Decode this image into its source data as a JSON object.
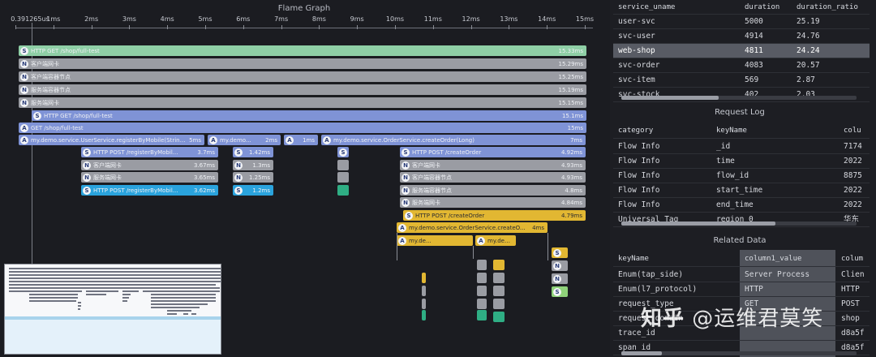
{
  "flame": {
    "title": "Flame Graph",
    "axis_start_label": "0.391265us",
    "ticks": [
      "1ms",
      "2ms",
      "3ms",
      "4ms",
      "5ms",
      "6ms",
      "7ms",
      "8ms",
      "9ms",
      "10ms",
      "11ms",
      "12ms",
      "13ms",
      "14ms",
      "15ms"
    ],
    "bars": [
      {
        "badge": "S",
        "name": "HTTP GET /shop/full-test",
        "dur": "15.33ms",
        "color": "#8fcfa6",
        "dark": false
      },
      {
        "badge": "N",
        "name": "客户端网卡",
        "dur": "15.29ms",
        "color": "#9a9ca3",
        "dark": false
      },
      {
        "badge": "N",
        "name": "客户端容器节点",
        "dur": "15.25ms",
        "color": "#9a9ca3",
        "dark": false
      },
      {
        "badge": "N",
        "name": "服务端容器节点",
        "dur": "15.19ms",
        "color": "#9a9ca3",
        "dark": false
      },
      {
        "badge": "N",
        "name": "服务端网卡",
        "dur": "15.15ms",
        "color": "#9a9ca3",
        "dark": false
      },
      {
        "badge": "S",
        "name": "HTTP GET /shop/full-test",
        "dur": "15.1ms",
        "color": "#7f93d6",
        "dark": false
      },
      {
        "badge": "A",
        "name": "GET /shop/full-test",
        "dur": "15ms",
        "color": "#7f93d6",
        "dark": false
      },
      {
        "badge": "A",
        "name": "my.demo.service.UserService.registerByMobile(String,St...",
        "dur": "5ms",
        "color": "#7f93d6",
        "dark": false
      },
      {
        "badge": "A",
        "name": "my.demo...",
        "dur": "2ms",
        "color": "#7f93d6",
        "dark": false
      },
      {
        "badge": "A",
        "name": "",
        "dur": "1ms",
        "color": "#7f93d6",
        "dark": false
      },
      {
        "badge": "A",
        "name": "my.demo.service.OrderService.createOrder(Long)",
        "dur": "7ms",
        "color": "#7f93d6",
        "dark": false
      },
      {
        "badge": "S",
        "name": "HTTP POST /registerByMobil...",
        "dur": "3.7ms",
        "color": "#7f93d6",
        "dark": false
      },
      {
        "badge": "S",
        "name": "",
        "dur": "1.42ms",
        "color": "#7f93d6",
        "dark": false
      },
      {
        "badge": "S",
        "name": "",
        "dur": "",
        "color": "#7f93d6",
        "dark": false
      },
      {
        "badge": "S",
        "name": "HTTP POST /createOrder",
        "dur": "4.92ms",
        "color": "#7f93d6",
        "dark": false
      },
      {
        "badge": "N",
        "name": "客户端网卡",
        "dur": "3.67ms",
        "color": "#9a9ca3",
        "dark": false
      },
      {
        "badge": "N",
        "name": "",
        "dur": "1.3ms",
        "color": "#9a9ca3",
        "dark": false
      },
      {
        "badge": "N",
        "name": "客户端网卡",
        "dur": "4.93ms",
        "color": "#9a9ca3",
        "dark": false
      },
      {
        "badge": "N",
        "name": "服务端网卡",
        "dur": "3.65ms",
        "color": "#9a9ca3",
        "dark": false
      },
      {
        "badge": "N",
        "name": "",
        "dur": "1.25ms",
        "color": "#9a9ca3",
        "dark": false
      },
      {
        "badge": "N",
        "name": "客户端容器节点",
        "dur": "4.93ms",
        "color": "#9a9ca3",
        "dark": false
      },
      {
        "badge": "S",
        "name": "HTTP POST /registerByMobil...",
        "dur": "3.62ms",
        "color": "#2aa3dd",
        "dark": false
      },
      {
        "badge": "S",
        "name": "",
        "dur": "1.2ms",
        "color": "#2aa3dd",
        "dark": false
      },
      {
        "badge": "N",
        "name": "服务端容器节点",
        "dur": "4.8ms",
        "color": "#9a9ca3",
        "dark": false
      },
      {
        "badge": "N",
        "name": "服务端网卡",
        "dur": "4.84ms",
        "color": "#9a9ca3",
        "dark": false
      },
      {
        "badge": "S",
        "name": "HTTP POST /createOrder",
        "dur": "4.79ms",
        "color": "#e2b732",
        "dark": true
      },
      {
        "badge": "A",
        "name": "my.demo.service.OrderService.createO...",
        "dur": "4ms",
        "color": "#e2b732",
        "dark": true
      },
      {
        "badge": "A",
        "name": "my.de...",
        "dur": "",
        "color": "#e2b732",
        "dark": true
      },
      {
        "badge": "A",
        "name": "my.demo...",
        "dur": "",
        "color": "#e2b732",
        "dark": true
      },
      {
        "badge": "S",
        "name": "",
        "dur": "",
        "color": "#e2b732",
        "dark": true
      },
      {
        "badge": "N",
        "name": "",
        "dur": "",
        "color": "#9a9ca3",
        "dark": false
      },
      {
        "badge": "N",
        "name": "",
        "dur": "",
        "color": "#9a9ca3",
        "dark": false
      },
      {
        "badge": "N",
        "name": "",
        "dur": "",
        "color": "#9a9ca3",
        "dark": false
      },
      {
        "badge": "S",
        "name": "",
        "dur": "",
        "color": "#8fd27a",
        "dark": true
      }
    ]
  },
  "services": {
    "headers": [
      "service_uname",
      "duration",
      "duration_ratio"
    ],
    "rows": [
      [
        "user-svc",
        "5000",
        "25.19"
      ],
      [
        "svc-user",
        "4914",
        "24.76"
      ],
      [
        "web-shop",
        "4811",
        "24.24"
      ],
      [
        "svc-order",
        "4083",
        "20.57"
      ],
      [
        "svc-item",
        "569",
        "2.87"
      ],
      [
        "svc-stock",
        "402",
        "2.03"
      ]
    ],
    "selected_index": 2
  },
  "request_log": {
    "title": "Request Log",
    "headers": [
      "category",
      "keyName",
      "colu"
    ],
    "rows": [
      [
        "Flow Info",
        "_id",
        "7174"
      ],
      [
        "Flow Info",
        "time",
        "2022"
      ],
      [
        "Flow Info",
        "flow_id",
        "8875"
      ],
      [
        "Flow Info",
        "start_time",
        "2022"
      ],
      [
        "Flow Info",
        "end_time",
        "2022"
      ],
      [
        "Universal Tag",
        "region_0",
        "华东"
      ]
    ]
  },
  "related": {
    "title": "Related Data",
    "headers": [
      "keyName",
      "column1_value",
      "colum"
    ],
    "rows": [
      [
        "Enum(tap_side)",
        "Server Process",
        "Clien"
      ],
      [
        "Enum(l7_protocol)",
        "HTTP",
        "HTTP"
      ],
      [
        "request_type",
        "GET",
        "POST"
      ],
      [
        "request_domain",
        "",
        "shop"
      ],
      [
        "trace_id",
        "",
        "d8a5f"
      ],
      [
        "span_id",
        "",
        "d8a5f"
      ]
    ]
  },
  "watermark": {
    "logo": "知乎",
    "author": "@运维君莫笑"
  }
}
